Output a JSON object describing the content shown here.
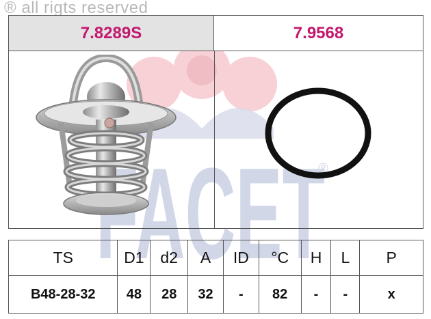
{
  "copyright": {
    "symbol": "®",
    "text": "all rigts reserved"
  },
  "parts": [
    {
      "code": "7.8289S",
      "image": "thermostat-icon"
    },
    {
      "code": "7.9568",
      "image": "o-ring-gasket-icon"
    }
  ],
  "watermark": {
    "brand": "FACET",
    "mark": "®"
  },
  "spec_table": {
    "headers": [
      "TS",
      "D1",
      "d2",
      "A",
      "ID",
      "°C",
      "H",
      "L",
      "P"
    ],
    "values": [
      "B48-28-32",
      "48",
      "28",
      "32",
      "-",
      "82",
      "-",
      "-",
      "x"
    ]
  },
  "colors": {
    "part_code": "#c2186e",
    "watermark_blue": "#d7dbea",
    "watermark_red": "#f6c9cf",
    "header_bg": "#e3e3e3"
  }
}
